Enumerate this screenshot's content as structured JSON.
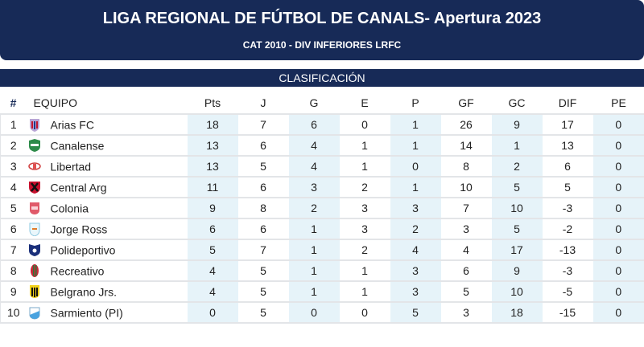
{
  "header": {
    "title": "LIGA REGIONAL DE FÚTBOL DE CANALS- Apertura 2023",
    "subtitle": "CAT 2010 - DIV INFERIORES LRFC"
  },
  "section": {
    "label": "CLASIFICACIÓN"
  },
  "colors": {
    "header_bg": "#172a57",
    "shade": "#e6f3f9",
    "row_border": "#e3e5e8"
  },
  "table": {
    "columns": [
      "#",
      "EQUIPO",
      "Pts",
      "J",
      "G",
      "E",
      "P",
      "GF",
      "GC",
      "DIF",
      "PE"
    ],
    "rows": [
      {
        "pos": "1",
        "team": "Arias FC",
        "crest": "arias-crest",
        "pts": "18",
        "j": "7",
        "g": "6",
        "e": "0",
        "p": "1",
        "gf": "26",
        "gc": "9",
        "dif": "17",
        "pe": "0"
      },
      {
        "pos": "2",
        "team": "Canalense",
        "crest": "canalense-crest",
        "pts": "13",
        "j": "6",
        "g": "4",
        "e": "1",
        "p": "1",
        "gf": "14",
        "gc": "1",
        "dif": "13",
        "pe": "0"
      },
      {
        "pos": "3",
        "team": "Libertad",
        "crest": "libertad-crest",
        "pts": "13",
        "j": "5",
        "g": "4",
        "e": "1",
        "p": "0",
        "gf": "8",
        "gc": "2",
        "dif": "6",
        "pe": "0"
      },
      {
        "pos": "4",
        "team": "Central Arg",
        "crest": "central-arg-crest",
        "pts": "11",
        "j": "6",
        "g": "3",
        "e": "2",
        "p": "1",
        "gf": "10",
        "gc": "5",
        "dif": "5",
        "pe": "0"
      },
      {
        "pos": "5",
        "team": "Colonia",
        "crest": "colonia-crest",
        "pts": "9",
        "j": "8",
        "g": "2",
        "e": "3",
        "p": "3",
        "gf": "7",
        "gc": "10",
        "dif": "-3",
        "pe": "0"
      },
      {
        "pos": "6",
        "team": "Jorge Ross",
        "crest": "jorge-ross-crest",
        "pts": "6",
        "j": "6",
        "g": "1",
        "e": "3",
        "p": "2",
        "gf": "3",
        "gc": "5",
        "dif": "-2",
        "pe": "0"
      },
      {
        "pos": "7",
        "team": "Polideportivo",
        "crest": "polideportivo-crest",
        "pts": "5",
        "j": "7",
        "g": "1",
        "e": "2",
        "p": "4",
        "gf": "4",
        "gc": "17",
        "dif": "-13",
        "pe": "0"
      },
      {
        "pos": "8",
        "team": "Recreativo",
        "crest": "recreativo-crest",
        "pts": "4",
        "j": "5",
        "g": "1",
        "e": "1",
        "p": "3",
        "gf": "6",
        "gc": "9",
        "dif": "-3",
        "pe": "0"
      },
      {
        "pos": "9",
        "team": "Belgrano Jrs.",
        "crest": "belgrano-crest",
        "pts": "4",
        "j": "5",
        "g": "1",
        "e": "1",
        "p": "3",
        "gf": "5",
        "gc": "10",
        "dif": "-5",
        "pe": "0"
      },
      {
        "pos": "10",
        "team": "Sarmiento (PI)",
        "crest": "sarmiento-crest",
        "pts": "0",
        "j": "5",
        "g": "0",
        "e": "0",
        "p": "5",
        "gf": "3",
        "gc": "18",
        "dif": "-15",
        "pe": "0"
      }
    ]
  }
}
